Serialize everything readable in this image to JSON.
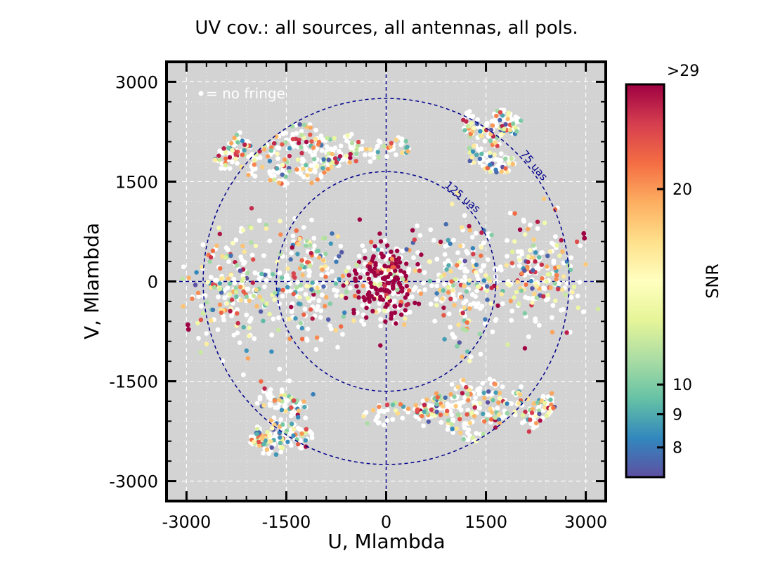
{
  "chart_data": {
    "type": "scatter",
    "title": "UV cov.: all sources, all antennas, all pols.",
    "xlabel": "U, Mlambda",
    "ylabel": "V, Mlambda",
    "xlim": [
      -3300,
      3300
    ],
    "ylim": [
      -3300,
      3300
    ],
    "xticks": [
      -3000,
      -1500,
      0,
      1500,
      3000
    ],
    "yticks": [
      -3000,
      -1500,
      0,
      1500,
      3000
    ],
    "xtick_labels": [
      "-3000",
      "-1500",
      "0",
      "1500",
      "3000"
    ],
    "ytick_labels": [
      "-3000",
      "-1500",
      "0",
      "1500",
      "3000"
    ],
    "grid": true,
    "background": "#d3d3d3",
    "legend": {
      "label": "= no fringe",
      "marker_color": "#ffffff",
      "placement": "top-left"
    },
    "circles": [
      {
        "label": "75 uas",
        "radius": 2750,
        "color": "#00008b",
        "style": "dashed"
      },
      {
        "label": "125 uas",
        "radius": 1650,
        "color": "#00008b",
        "style": "dashed"
      }
    ],
    "colorbar": {
      "label": "SNR",
      "colormap": "Spectral_r",
      "scale": "log",
      "min": 7.2,
      "max": 29,
      "ticks": [
        8,
        9,
        10,
        20
      ],
      "tick_labels": [
        "8",
        "9",
        "10",
        "20"
      ],
      "top_label": ">29",
      "colors": [
        "#5e4fa2",
        "#3288bd",
        "#66c2a5",
        "#abdda4",
        "#e6f598",
        "#ffffbf",
        "#fee08b",
        "#fdae61",
        "#f46d43",
        "#d53e4f",
        "#9e0142"
      ]
    },
    "tracks": [
      {
        "u": [
          -2500,
          -2100
        ],
        "v": [
          1750,
          2150
        ]
      },
      {
        "u": [
          -2150,
          -1150
        ],
        "v": [
          1650,
          2350
        ]
      },
      {
        "u": [
          -1700,
          -900
        ],
        "v": [
          1500,
          2200
        ]
      },
      {
        "u": [
          -1250,
          -450
        ],
        "v": [
          1550,
          2100
        ]
      },
      {
        "u": [
          -950,
          350
        ],
        "v": [
          1850,
          2050
        ]
      },
      {
        "u": [
          1150,
          1750
        ],
        "v": [
          2400,
          2150
        ]
      },
      {
        "u": [
          1200,
          1900
        ],
        "v": [
          1950,
          1700
        ]
      },
      {
        "u": [
          1600,
          2000
        ],
        "v": [
          2500,
          2300
        ]
      },
      {
        "u": [
          2500,
          2100
        ],
        "v": [
          -1750,
          -2150
        ]
      },
      {
        "u": [
          2150,
          1150
        ],
        "v": [
          -1650,
          -2350
        ]
      },
      {
        "u": [
          1700,
          900
        ],
        "v": [
          -1500,
          -2200
        ]
      },
      {
        "u": [
          1250,
          450
        ],
        "v": [
          -1550,
          -2100
        ]
      },
      {
        "u": [
          950,
          -350
        ],
        "v": [
          -1850,
          -2050
        ]
      },
      {
        "u": [
          -1150,
          -1750
        ],
        "v": [
          -2400,
          -2150
        ]
      },
      {
        "u": [
          -1200,
          -1900
        ],
        "v": [
          -1950,
          -1700
        ]
      },
      {
        "u": [
          -1600,
          -2000
        ],
        "v": [
          -2500,
          -2300
        ]
      }
    ],
    "blobs": [
      {
        "u": 0,
        "v": 0,
        "su": 260,
        "sv": 300,
        "n": 320,
        "snr": "high"
      },
      {
        "u": -2250,
        "v": -100,
        "su": 330,
        "sv": 430,
        "n": 210,
        "snr": "mixed"
      },
      {
        "u": 2250,
        "v": 100,
        "su": 330,
        "sv": 430,
        "n": 210,
        "snr": "mixed"
      },
      {
        "u": -1150,
        "v": -50,
        "su": 260,
        "sv": 480,
        "n": 190,
        "snr": "mixed"
      },
      {
        "u": 1150,
        "v": 50,
        "su": 260,
        "sv": 480,
        "n": 190,
        "snr": "mixed"
      }
    ],
    "outliers": [
      {
        "u": -2980,
        "v": -650,
        "snr": 29
      },
      {
        "u": -2970,
        "v": -720,
        "snr": 29
      },
      {
        "u": 2980,
        "v": 650,
        "snr": 29
      },
      {
        "u": 2970,
        "v": 720,
        "snr": 29
      }
    ]
  }
}
